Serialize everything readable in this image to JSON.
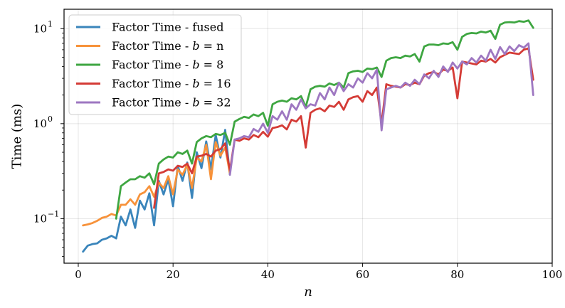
{
  "chart_data": {
    "type": "line",
    "title": "",
    "xlabel": "n",
    "ylabel": "Time (ms)",
    "xlim": [
      -3,
      100
    ],
    "ylim": [
      0.034,
      16
    ],
    "yscale": "log",
    "grid": true,
    "legend_position": "top-left",
    "x_ticks": [
      0,
      20,
      40,
      60,
      80,
      100
    ],
    "x_tick_labels": [
      "0",
      "20",
      "40",
      "60",
      "80",
      "100"
    ],
    "y_ticks": [
      0.1,
      1,
      10
    ],
    "y_tick_labels": [
      "10",
      "10",
      "10"
    ],
    "y_tick_exponents": [
      "−1",
      "0",
      "1"
    ],
    "series": [
      {
        "name": "Factor Time - fused",
        "legend_prefix": "Factor Time - fused",
        "legend_math": "",
        "legend_suffix": "",
        "color": "#3a85bb",
        "x": [
          1,
          2,
          3,
          4,
          5,
          6,
          7,
          8,
          9,
          10,
          11,
          12,
          13,
          14,
          15,
          16,
          17,
          18,
          19,
          20,
          21,
          22,
          23,
          24,
          25,
          26,
          27,
          28,
          29,
          30,
          31,
          32
        ],
        "y": [
          0.045,
          0.052,
          0.054,
          0.055,
          0.06,
          0.062,
          0.066,
          0.062,
          0.105,
          0.085,
          0.125,
          0.08,
          0.155,
          0.125,
          0.185,
          0.085,
          0.25,
          0.18,
          0.26,
          0.135,
          0.36,
          0.25,
          0.39,
          0.165,
          0.5,
          0.34,
          0.65,
          0.33,
          0.76,
          0.44,
          0.86,
          0.29
        ]
      },
      {
        "name": "Factor Time - b = n",
        "legend_prefix": "Factor Time - ",
        "legend_math": "b",
        "legend_suffix": " = n",
        "color": "#f7923a",
        "x": [
          1,
          2,
          3,
          4,
          5,
          6,
          7,
          8,
          9,
          10,
          11,
          12,
          13,
          14,
          15,
          16,
          17,
          18,
          19,
          20,
          21,
          22,
          23,
          24,
          25,
          26,
          27,
          28,
          29,
          30,
          31,
          32
        ],
        "y": [
          0.085,
          0.087,
          0.09,
          0.095,
          0.102,
          0.105,
          0.112,
          0.108,
          0.14,
          0.14,
          0.16,
          0.14,
          0.18,
          0.19,
          0.22,
          0.17,
          0.24,
          0.21,
          0.28,
          0.18,
          0.33,
          0.29,
          0.37,
          0.21,
          0.44,
          0.4,
          0.6,
          0.26,
          0.64,
          0.46,
          0.56,
          0.3
        ]
      },
      {
        "name": "Factor Time - b = 8",
        "legend_prefix": "Factor Time - ",
        "legend_math": "b",
        "legend_suffix": " = 8",
        "color": "#3ea641",
        "x": [
          8,
          9,
          10,
          11,
          12,
          13,
          14,
          15,
          16,
          17,
          18,
          19,
          20,
          21,
          22,
          23,
          24,
          25,
          26,
          27,
          28,
          29,
          30,
          31,
          32,
          33,
          34,
          35,
          36,
          37,
          38,
          39,
          40,
          41,
          42,
          43,
          44,
          45,
          46,
          47,
          48,
          49,
          50,
          51,
          52,
          53,
          54,
          55,
          56,
          57,
          58,
          59,
          60,
          61,
          62,
          63,
          64,
          65,
          66,
          67,
          68,
          69,
          70,
          71,
          72,
          73,
          74,
          75,
          76,
          77,
          78,
          79,
          80,
          81,
          82,
          83,
          84,
          85,
          86,
          87,
          88,
          89,
          90,
          91,
          92,
          93,
          94,
          95,
          96
        ],
        "y": [
          0.1,
          0.22,
          0.24,
          0.26,
          0.26,
          0.28,
          0.27,
          0.3,
          0.23,
          0.38,
          0.42,
          0.45,
          0.44,
          0.5,
          0.48,
          0.52,
          0.38,
          0.64,
          0.7,
          0.74,
          0.72,
          0.78,
          0.76,
          0.8,
          0.6,
          1.05,
          1.12,
          1.18,
          1.15,
          1.25,
          1.2,
          1.3,
          0.95,
          1.6,
          1.7,
          1.75,
          1.7,
          1.85,
          1.8,
          1.95,
          1.5,
          2.3,
          2.45,
          2.5,
          2.45,
          2.65,
          2.55,
          2.7,
          2.4,
          3.4,
          3.55,
          3.6,
          3.5,
          3.8,
          3.75,
          3.9,
          3.1,
          4.6,
          4.9,
          5.0,
          4.9,
          5.2,
          5.1,
          5.4,
          4.5,
          6.5,
          6.8,
          6.8,
          6.7,
          7.0,
          6.9,
          7.2,
          6.0,
          8.2,
          8.8,
          9.0,
          8.9,
          9.3,
          9.1,
          9.5,
          7.8,
          11.0,
          11.6,
          11.7,
          11.6,
          12.0,
          11.8,
          12.2,
          10.2
        ]
      },
      {
        "name": "Factor Time - b = 16",
        "legend_prefix": "Factor Time - ",
        "legend_math": "b",
        "legend_suffix": " = 16",
        "color": "#d43b36",
        "x": [
          16,
          17,
          18,
          19,
          20,
          21,
          22,
          23,
          24,
          25,
          26,
          27,
          28,
          29,
          30,
          31,
          32,
          33,
          34,
          35,
          36,
          37,
          38,
          39,
          40,
          41,
          42,
          43,
          44,
          45,
          46,
          47,
          48,
          49,
          50,
          51,
          52,
          53,
          54,
          55,
          56,
          57,
          58,
          59,
          60,
          61,
          62,
          63,
          64,
          65,
          66,
          67,
          68,
          69,
          70,
          71,
          72,
          73,
          74,
          75,
          76,
          77,
          78,
          79,
          80,
          81,
          82,
          83,
          84,
          85,
          86,
          87,
          88,
          89,
          90,
          91,
          92,
          93,
          94,
          95,
          96
        ],
        "y": [
          0.13,
          0.3,
          0.31,
          0.33,
          0.32,
          0.36,
          0.35,
          0.38,
          0.3,
          0.45,
          0.46,
          0.48,
          0.45,
          0.52,
          0.54,
          0.62,
          0.32,
          0.68,
          0.66,
          0.7,
          0.68,
          0.76,
          0.72,
          0.82,
          0.73,
          0.9,
          0.92,
          0.96,
          0.87,
          1.1,
          1.05,
          1.2,
          0.56,
          1.3,
          1.4,
          1.45,
          1.35,
          1.55,
          1.5,
          1.7,
          1.4,
          1.8,
          1.9,
          1.95,
          1.7,
          2.2,
          2.0,
          2.4,
          1.0,
          2.6,
          2.5,
          2.45,
          2.4,
          2.6,
          2.55,
          2.7,
          2.6,
          3.2,
          3.4,
          3.5,
          3.3,
          3.7,
          3.6,
          3.9,
          1.85,
          4.5,
          4.4,
          4.3,
          4.2,
          4.6,
          4.5,
          4.8,
          4.4,
          5.0,
          5.3,
          5.6,
          5.5,
          5.4,
          6.0,
          6.2,
          2.9
        ]
      },
      {
        "name": "Factor Time - b = 32",
        "legend_prefix": "Factor Time - ",
        "legend_math": "b",
        "legend_suffix": " = 32",
        "color": "#9e77c1",
        "x": [
          32,
          33,
          34,
          35,
          36,
          37,
          38,
          39,
          40,
          41,
          42,
          43,
          44,
          45,
          46,
          47,
          48,
          49,
          50,
          51,
          52,
          53,
          54,
          55,
          56,
          57,
          58,
          59,
          60,
          61,
          62,
          63,
          64,
          65,
          66,
          67,
          68,
          69,
          70,
          71,
          72,
          73,
          74,
          75,
          76,
          77,
          78,
          79,
          80,
          81,
          82,
          83,
          84,
          85,
          86,
          87,
          88,
          89,
          90,
          91,
          92,
          93,
          94,
          95,
          96
        ],
        "y": [
          0.29,
          0.68,
          0.7,
          0.74,
          0.72,
          0.88,
          0.82,
          1.0,
          0.8,
          1.2,
          1.1,
          1.35,
          1.1,
          1.6,
          1.4,
          1.8,
          1.45,
          1.6,
          1.55,
          2.1,
          1.8,
          2.4,
          2.0,
          2.7,
          2.2,
          2.6,
          2.4,
          3.0,
          2.7,
          3.4,
          3.0,
          3.7,
          0.85,
          2.3,
          2.4,
          2.5,
          2.4,
          2.7,
          2.5,
          2.9,
          2.6,
          3.3,
          3.0,
          3.6,
          3.1,
          4.0,
          3.5,
          4.4,
          3.8,
          4.5,
          4.2,
          4.9,
          4.4,
          5.2,
          4.6,
          6.0,
          4.8,
          6.4,
          5.4,
          6.5,
          5.8,
          6.7,
          6.3,
          7.0,
          2.0
        ]
      }
    ]
  }
}
